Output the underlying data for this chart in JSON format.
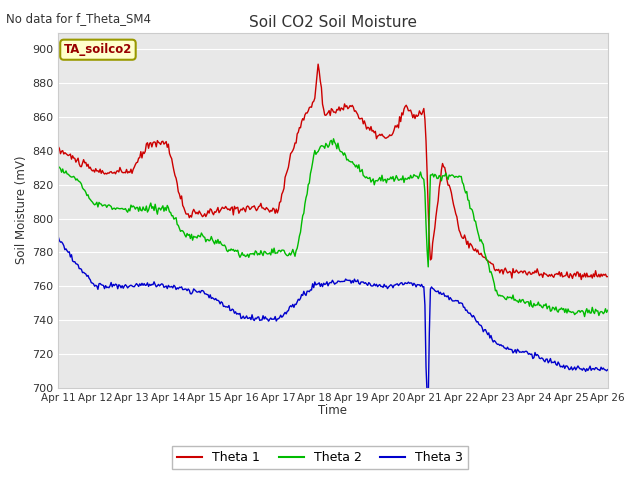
{
  "title": "Soil CO2 Soil Moisture",
  "subtitle": "No data for f_Theta_SM4",
  "ylabel": "Soil Moisture (mV)",
  "xlabel": "Time",
  "ylim": [
    700,
    910
  ],
  "yticks": [
    700,
    720,
    740,
    760,
    780,
    800,
    820,
    840,
    860,
    880,
    900
  ],
  "x_labels": [
    "Apr 11",
    "Apr 12",
    "Apr 13",
    "Apr 14",
    "Apr 15",
    "Apr 16",
    "Apr 17",
    "Apr 18",
    "Apr 19",
    "Apr 20",
    "Apr 21",
    "Apr 22",
    "Apr 23",
    "Apr 24",
    "Apr 25",
    "Apr 26"
  ],
  "legend_label": "TA_soilco2",
  "line_colors": [
    "#cc0000",
    "#00bb00",
    "#0000cc"
  ],
  "line_names": [
    "Theta 1",
    "Theta 2",
    "Theta 3"
  ],
  "fig_bg_color": "#ffffff",
  "plot_bg_color": "#e8e8e8",
  "grid_color": "#ffffff"
}
